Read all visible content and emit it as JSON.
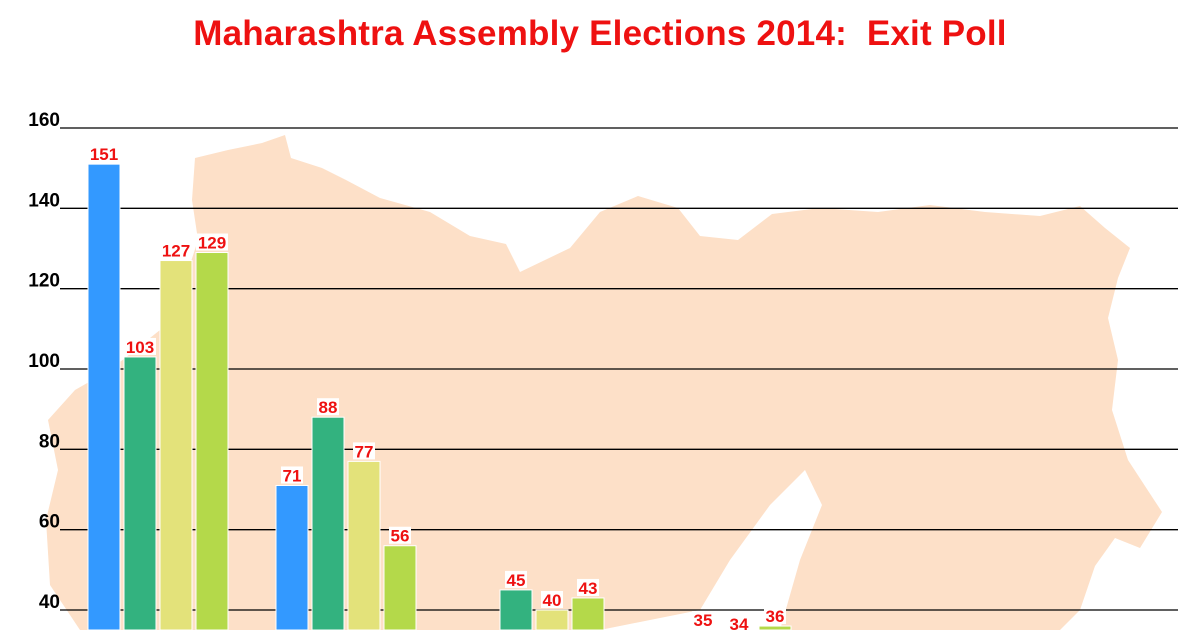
{
  "chart_data": {
    "type": "bar",
    "title": "Maharashtra Assembly Elections 2014:  Exit Poll",
    "xlabel": "",
    "ylabel": "",
    "ylim": [
      40,
      160
    ],
    "yticks": [
      40,
      60,
      80,
      100,
      120,
      140,
      160
    ],
    "grid": true,
    "legend": "none",
    "series_colors": [
      "#3399ff",
      "#33b27f",
      "#e3e27a",
      "#b4d94a"
    ],
    "groups": [
      {
        "values": [
          151,
          103,
          127,
          129
        ]
      },
      {
        "values": [
          71,
          88,
          77,
          56
        ]
      },
      {
        "values": [
          null,
          45,
          40,
          43
        ]
      },
      {
        "values": [
          null,
          35,
          34,
          36
        ]
      }
    ]
  },
  "colors": {
    "title": "#ee1111",
    "value_label": "#ee1111",
    "gridline": "#000000",
    "map_background": "#fde0c8"
  },
  "background_image": "maharashtra-map-silhouette"
}
